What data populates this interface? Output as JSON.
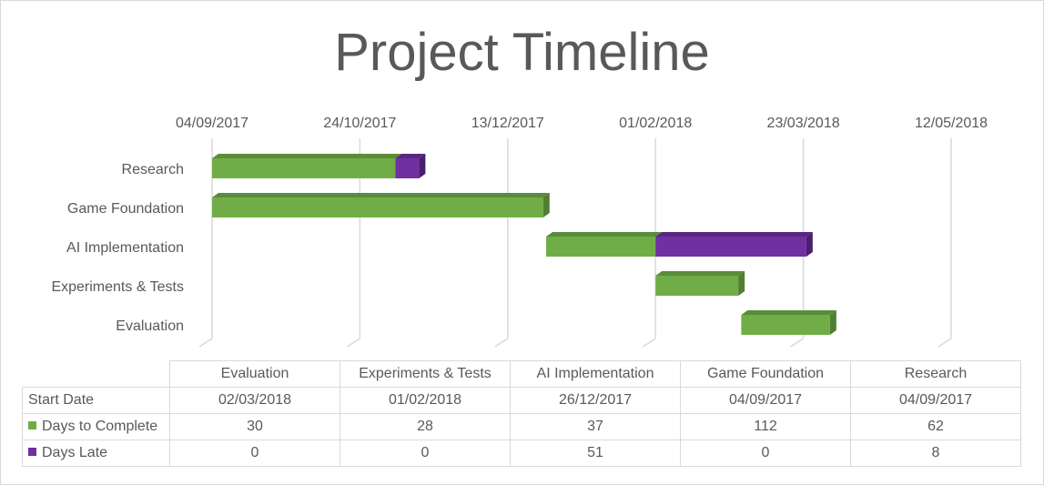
{
  "chart_data": {
    "type": "bar",
    "orientation": "horizontal-stacked",
    "title": "Project Timeline",
    "x_axis": {
      "position": "top",
      "tick_labels": [
        "04/09/2017",
        "24/10/2017",
        "13/12/2017",
        "01/02/2018",
        "23/03/2018",
        "12/05/2018"
      ],
      "range": [
        "04/09/2017",
        "12/05/2018"
      ],
      "major_unit_days": 50
    },
    "grid": true,
    "categories": [
      "Research",
      "Game Foundation",
      "AI Implementation",
      "Experiments & Tests",
      "Evaluation"
    ],
    "start_dates": [
      "04/09/2017",
      "04/09/2017",
      "26/12/2017",
      "01/02/2018",
      "02/03/2018"
    ],
    "series": [
      {
        "name": "Days to Complete",
        "color": "#70ad47",
        "values": [
          62,
          112,
          37,
          28,
          30
        ]
      },
      {
        "name": "Days Late",
        "color": "#7030a0",
        "values": [
          8,
          0,
          51,
          0,
          0
        ]
      }
    ],
    "legend": "data table"
  },
  "table": {
    "columns": [
      "Evaluation",
      "Experiments & Tests",
      "AI Implementation",
      "Game Foundation",
      "Research"
    ],
    "rows": [
      {
        "label": "Start Date",
        "cells": [
          "02/03/2018",
          "01/02/2018",
          "26/12/2017",
          "04/09/2017",
          "04/09/2017"
        ]
      },
      {
        "label": "Days to Complete",
        "cells": [
          "30",
          "28",
          "37",
          "112",
          "62"
        ]
      },
      {
        "label": "Days Late",
        "cells": [
          "0",
          "0",
          "51",
          "0",
          "8"
        ]
      }
    ]
  }
}
